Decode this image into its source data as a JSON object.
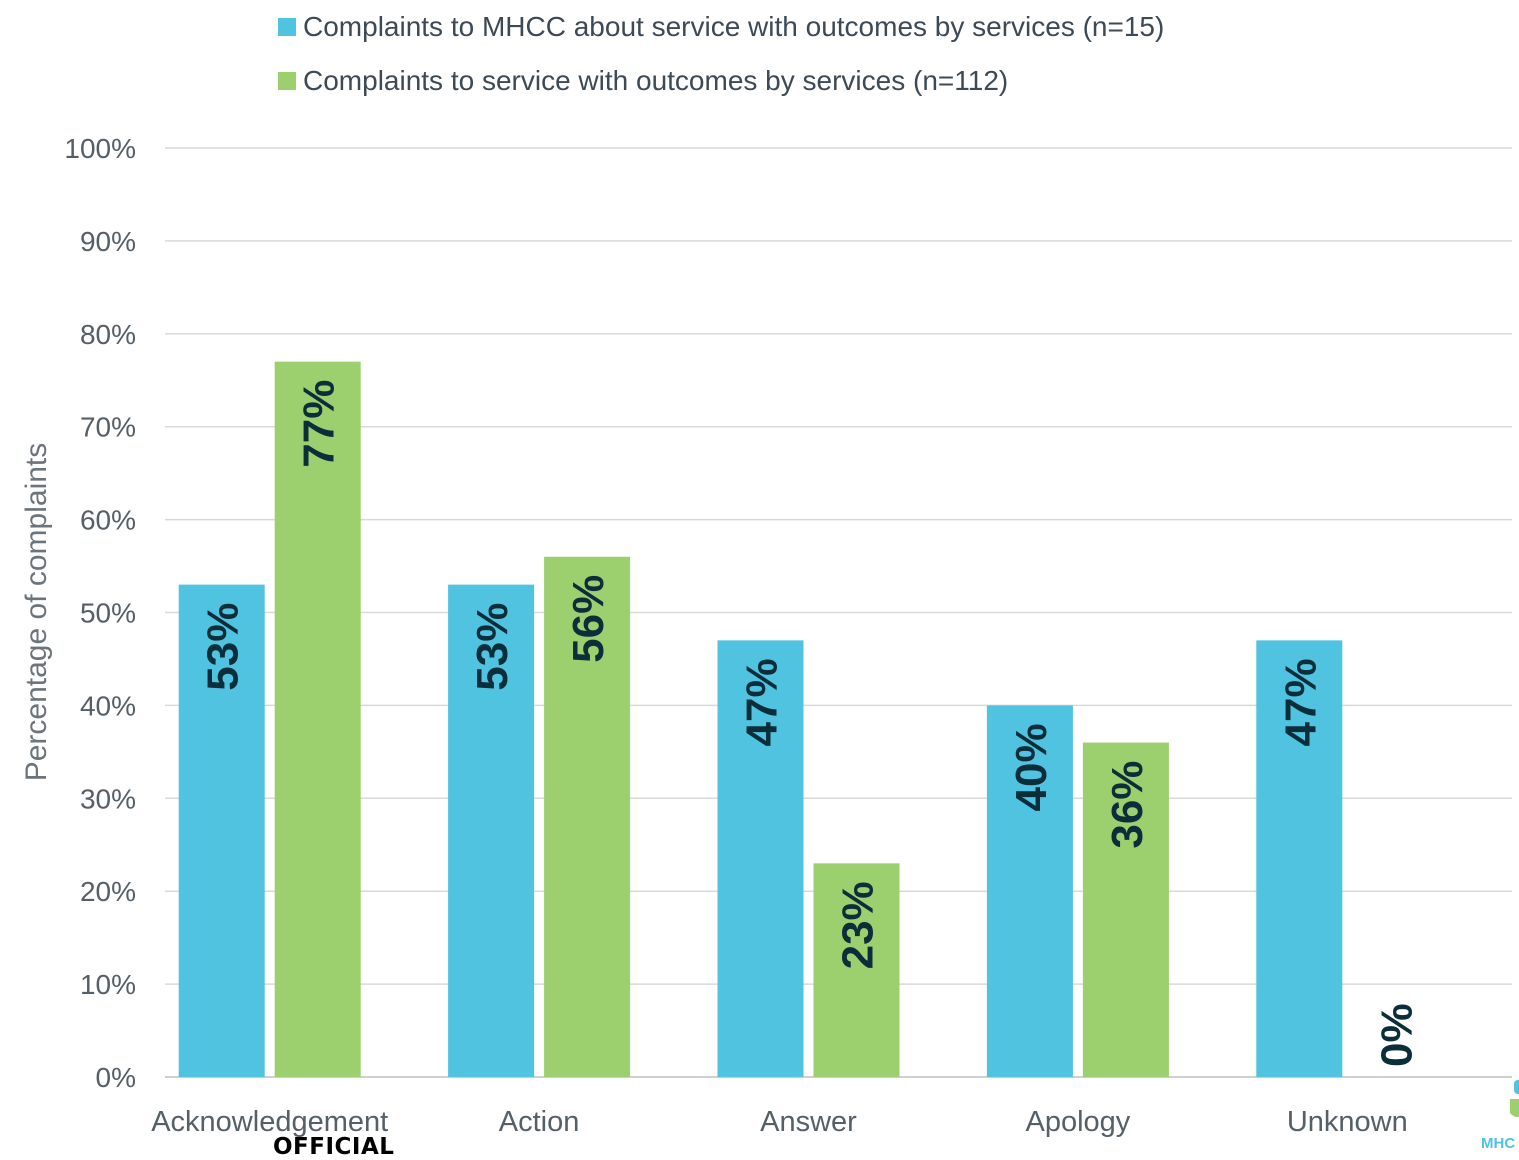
{
  "chart_data": {
    "type": "bar",
    "categories": [
      "Acknowledgement",
      "Action",
      "Answer",
      "Apology",
      "Unknown"
    ],
    "series": [
      {
        "name": "Complaints to MHCC about service with outcomes by services (n=15)",
        "values": [
          53,
          53,
          47,
          40,
          47
        ],
        "labels": [
          "53%",
          "53%",
          "47%",
          "40%",
          "47%"
        ],
        "color": "#4fc3df"
      },
      {
        "name": "Complaints to service with outcomes by services (n=112)",
        "values": [
          77,
          56,
          23,
          36,
          0
        ],
        "labels": [
          "77%",
          "56%",
          "23%",
          "36%",
          "0%"
        ],
        "color": "#9ccf6e"
      }
    ],
    "ylabel": "Percentage of complaints",
    "ylim": [
      0,
      100
    ],
    "yticks": [
      "0%",
      "10%",
      "20%",
      "30%",
      "40%",
      "50%",
      "60%",
      "70%",
      "80%",
      "90%",
      "100%"
    ],
    "grid": true,
    "legend_position": "top",
    "label_color": "#0c2d3a",
    "axis_text_color": "#555f66",
    "grid_color": "#d9d9d9"
  },
  "footer": {
    "marking": "OFFICIAL",
    "logo_text": "MHC"
  }
}
